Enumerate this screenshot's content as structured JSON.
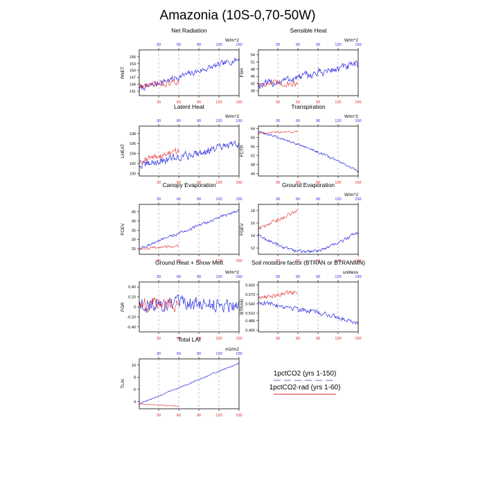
{
  "page_title": "Amazonia (10S-0,70-50W)",
  "colors": {
    "series_1pctCO2": "#1f1fe0",
    "series_1pctCO2_rad": "#e02020",
    "axis": "#000000",
    "grid": "#9a9a9a"
  },
  "legend": {
    "entries": [
      {
        "name": "1pctCO2 (yrs 1-150)",
        "color": "#1f1fe0",
        "dash": true
      },
      {
        "name": "1pctCO2-rad (yrs 1-60)",
        "color": "#e02020",
        "dash": false
      }
    ]
  },
  "chart_data": [
    {
      "type": "line",
      "title": "Net Radiation",
      "ylabel": "RNET",
      "unit": "W/m^2",
      "xlim": [
        1,
        150
      ],
      "xticks": [
        30,
        60,
        90,
        120,
        150
      ],
      "ylim": [
        139,
        159
      ],
      "yticks": [
        141,
        144,
        147,
        150,
        153,
        156
      ],
      "series": [
        {
          "key": "blue",
          "start": 142,
          "end": 155,
          "noise": 2.0,
          "n": 150,
          "color": "#1f1fe0"
        },
        {
          "key": "red",
          "start": 143,
          "end": 145,
          "noise": 2.0,
          "n": 60,
          "color": "#e02020"
        }
      ]
    },
    {
      "type": "line",
      "title": "Sensible Heat",
      "ylabel": "FSH",
      "unit": "W/m^2",
      "xlim": [
        1,
        150
      ],
      "xticks": [
        30,
        60,
        90,
        120,
        150
      ],
      "ylim": [
        37,
        56
      ],
      "yticks": [
        39.0,
        42.0,
        45.0,
        48.0,
        51.0,
        54.0
      ],
      "series": [
        {
          "key": "blue",
          "start": 41,
          "end": 50,
          "noise": 2.5,
          "n": 150,
          "color": "#1f1fe0"
        },
        {
          "key": "red",
          "start": 42,
          "end": 42,
          "noise": 2.0,
          "n": 60,
          "color": "#e02020"
        }
      ]
    },
    {
      "type": "line",
      "title": "Latent Heat",
      "ylabel": "LHEAT",
      "unit": "W/m^2",
      "xlim": [
        1,
        150
      ],
      "xticks": [
        30,
        60,
        90,
        120,
        150
      ],
      "ylim": [
        99.5,
        109.5
      ],
      "yticks": [
        100,
        102,
        104,
        106,
        108
      ],
      "series": [
        {
          "key": "blue",
          "start": 101.5,
          "end": 106,
          "noise": 1.2,
          "n": 150,
          "color": "#1f1fe0"
        },
        {
          "key": "red",
          "start": 102.5,
          "end": 104.5,
          "noise": 1.0,
          "n": 60,
          "color": "#e02020"
        }
      ]
    },
    {
      "type": "line",
      "title": "Transpiration",
      "ylabel": "FCTR",
      "unit": "W/m^2",
      "xlim": [
        1,
        150
      ],
      "xticks": [
        30,
        60,
        90,
        120,
        150
      ],
      "ylim": [
        43,
        65
      ],
      "yticks": [
        44.0,
        48.0,
        52.0,
        56.0,
        60.0,
        64.0
      ],
      "series": [
        {
          "key": "blue",
          "start": 62.5,
          "end": 45,
          "noise": 0.7,
          "n": 150,
          "shape": "curve",
          "color": "#1f1fe0"
        },
        {
          "key": "red",
          "start": 62,
          "end": 62.5,
          "noise": 0.6,
          "n": 60,
          "color": "#e02020"
        }
      ]
    },
    {
      "type": "line",
      "title": "Canopy Evaporation",
      "ylabel": "FCEV",
      "unit": "",
      "xlim": [
        1,
        150
      ],
      "xticks": [
        30,
        60,
        90,
        120,
        150
      ],
      "ylim": [
        22,
        49
      ],
      "yticks": [
        25,
        30,
        35,
        40,
        45
      ],
      "series": [
        {
          "key": "blue",
          "start": 25,
          "end": 46,
          "noise": 1.2,
          "n": 150,
          "color": "#1f1fe0"
        },
        {
          "key": "red",
          "start": 25,
          "end": 26.5,
          "noise": 1.0,
          "n": 60,
          "color": "#e02020"
        }
      ]
    },
    {
      "type": "line",
      "title": "Ground Evaporation",
      "ylabel": "FGEV",
      "unit": "W/m^2",
      "xlim": [
        1,
        150
      ],
      "xticks": [
        30,
        60,
        90,
        120,
        150
      ],
      "ylim": [
        11,
        19
      ],
      "yticks": [
        12,
        14,
        16,
        18
      ],
      "series": [
        {
          "key": "blue",
          "start": 14,
          "end": 14,
          "noise": 0.4,
          "n": 150,
          "shape": "dip",
          "dip": 11.4,
          "color": "#1f1fe0"
        },
        {
          "key": "red",
          "start": 15,
          "end": 18,
          "noise": 0.5,
          "n": 60,
          "color": "#e02020"
        }
      ]
    },
    {
      "type": "line",
      "title": "Ground Heat + Snow Melt",
      "ylabel": "FGR",
      "unit": "W/m^2",
      "xlim": [
        1,
        150
      ],
      "xticks": [
        30,
        60,
        90,
        120,
        150
      ],
      "ylim": [
        -0.5,
        0.5
      ],
      "yticks": [
        -0.4,
        -0.2,
        0.0,
        0.2,
        0.4
      ],
      "series": [
        {
          "key": "blue",
          "start": 0.05,
          "end": 0.05,
          "noise": 0.22,
          "n": 150,
          "color": "#1f1fe0"
        },
        {
          "key": "red",
          "start": 0.05,
          "end": 0.05,
          "noise": 0.22,
          "n": 60,
          "color": "#e02020"
        }
      ]
    },
    {
      "type": "line",
      "title": "Soil moisture factor (BTRAN or BTRANMN)",
      "ylabel": "BTRAN",
      "unit": "unitless",
      "xlim": [
        1,
        150
      ],
      "xticks": [
        30,
        60,
        90,
        120,
        150
      ],
      "ylim": [
        0.45,
        0.61
      ],
      "yticks": [
        0.456,
        0.486,
        0.51,
        0.54,
        0.57,
        0.6
      ],
      "series": [
        {
          "key": "blue",
          "start": 0.545,
          "end": 0.48,
          "noise": 0.012,
          "n": 150,
          "shape": "curve",
          "color": "#1f1fe0"
        },
        {
          "key": "red",
          "start": 0.56,
          "end": 0.58,
          "noise": 0.012,
          "n": 60,
          "color": "#e02020"
        }
      ]
    },
    {
      "type": "line",
      "title": "Total LAI",
      "ylabel": "TLAI",
      "unit": "m2/m2",
      "xlim": [
        1,
        150
      ],
      "xticks": [
        30,
        60,
        90,
        120,
        150
      ],
      "ylim": [
        2.8,
        11
      ],
      "yticks": [
        4,
        6,
        8,
        10
      ],
      "series": [
        {
          "key": "blue",
          "start": 3.6,
          "end": 10.3,
          "noise": 0.15,
          "n": 150,
          "color": "#1f1fe0"
        },
        {
          "key": "red",
          "start": 3.6,
          "end": 3.2,
          "noise": 0.1,
          "n": 60,
          "color": "#e02020"
        }
      ]
    }
  ]
}
